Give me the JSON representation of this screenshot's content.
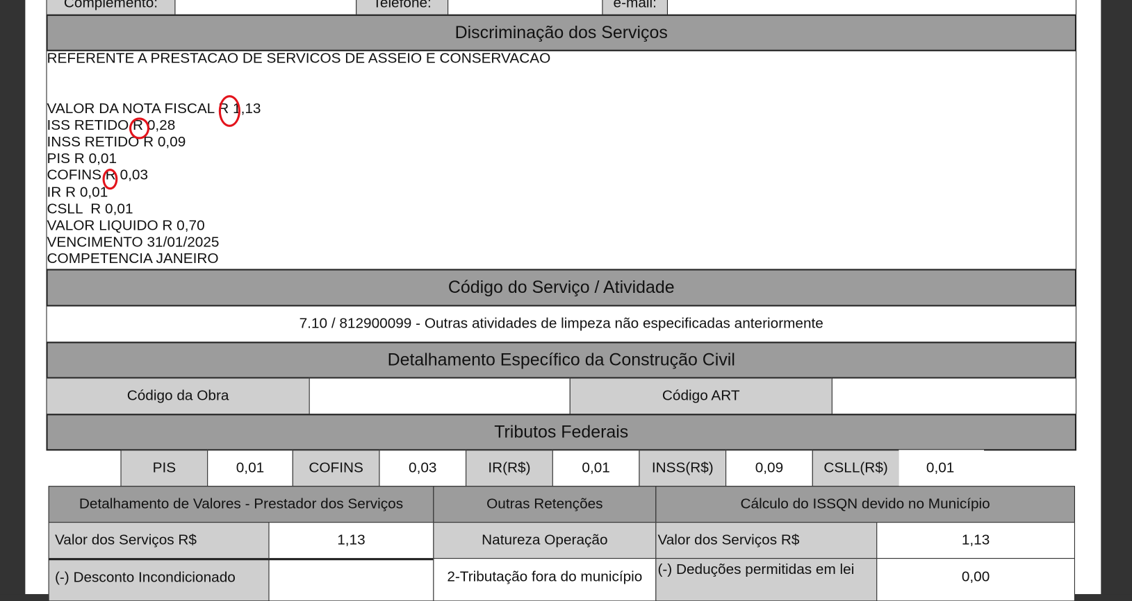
{
  "top_row": {
    "complemento_label": "Complemento:",
    "telefone_label": "Telefone:",
    "email_label": "e-mail:"
  },
  "discriminacao": {
    "title": "Discriminação dos Serviços",
    "lines": [
      "REFERENTE A PRESTACAO DE SERVICOS DE ASSEIO E CONSERVACAO",
      "",
      "",
      "VALOR DA NOTA FISCAL R 1,13",
      "ISS RETIDO R 0,28",
      "INSS RETIDO R 0,09",
      "PIS R 0,01",
      "COFINS R 0,03",
      "IR R 0,01",
      "CSLL  R 0,01",
      "VALOR LIQUIDO R 0,70",
      "VENCIMENTO 31/01/2025",
      "COMPETENCIA JANEIRO"
    ],
    "annotation_color": "#e3131b"
  },
  "codigo_servico": {
    "title": "Código do Serviço / Atividade",
    "value": "7.10 / 812900099 - Outras atividades de limpeza não especificadas anteriormente"
  },
  "construcao_civil": {
    "title": "Detalhamento Específico da Construção Civil",
    "codigo_obra_label": "Código da Obra",
    "codigo_obra_value": "",
    "codigo_art_label": "Código ART",
    "codigo_art_value": ""
  },
  "tributos": {
    "title": "Tributos Federais",
    "items": [
      {
        "label": "PIS",
        "value": "0,01"
      },
      {
        "label": "COFINS",
        "value": "0,03"
      },
      {
        "label": "IR(R$)",
        "value": "0,01"
      },
      {
        "label": "INSS(R$)",
        "value": "0,09"
      },
      {
        "label": "CSLL(R$)",
        "value": "0,01"
      }
    ]
  },
  "valores": {
    "prestador_title": "Detalhamento de Valores - Prestador dos Serviços",
    "outras_title": "Outras Retenções",
    "issqn_title": "Cálculo do ISSQN devido no Município",
    "valor_servicos_label": "Valor dos Serviços    R$",
    "valor_servicos_value": "1,13",
    "natureza_label": "Natureza Operação",
    "issqn_valor_label": "Valor dos Serviços   R$",
    "issqn_valor_value": "1,13",
    "desconto_label": "(-) Desconto Incondicionado",
    "desconto_value": "",
    "natureza_value": "2-Tributação fora do município",
    "deducoes_label": "(-)  Deduções permitidas em lei",
    "deducoes_value": "0,00"
  }
}
